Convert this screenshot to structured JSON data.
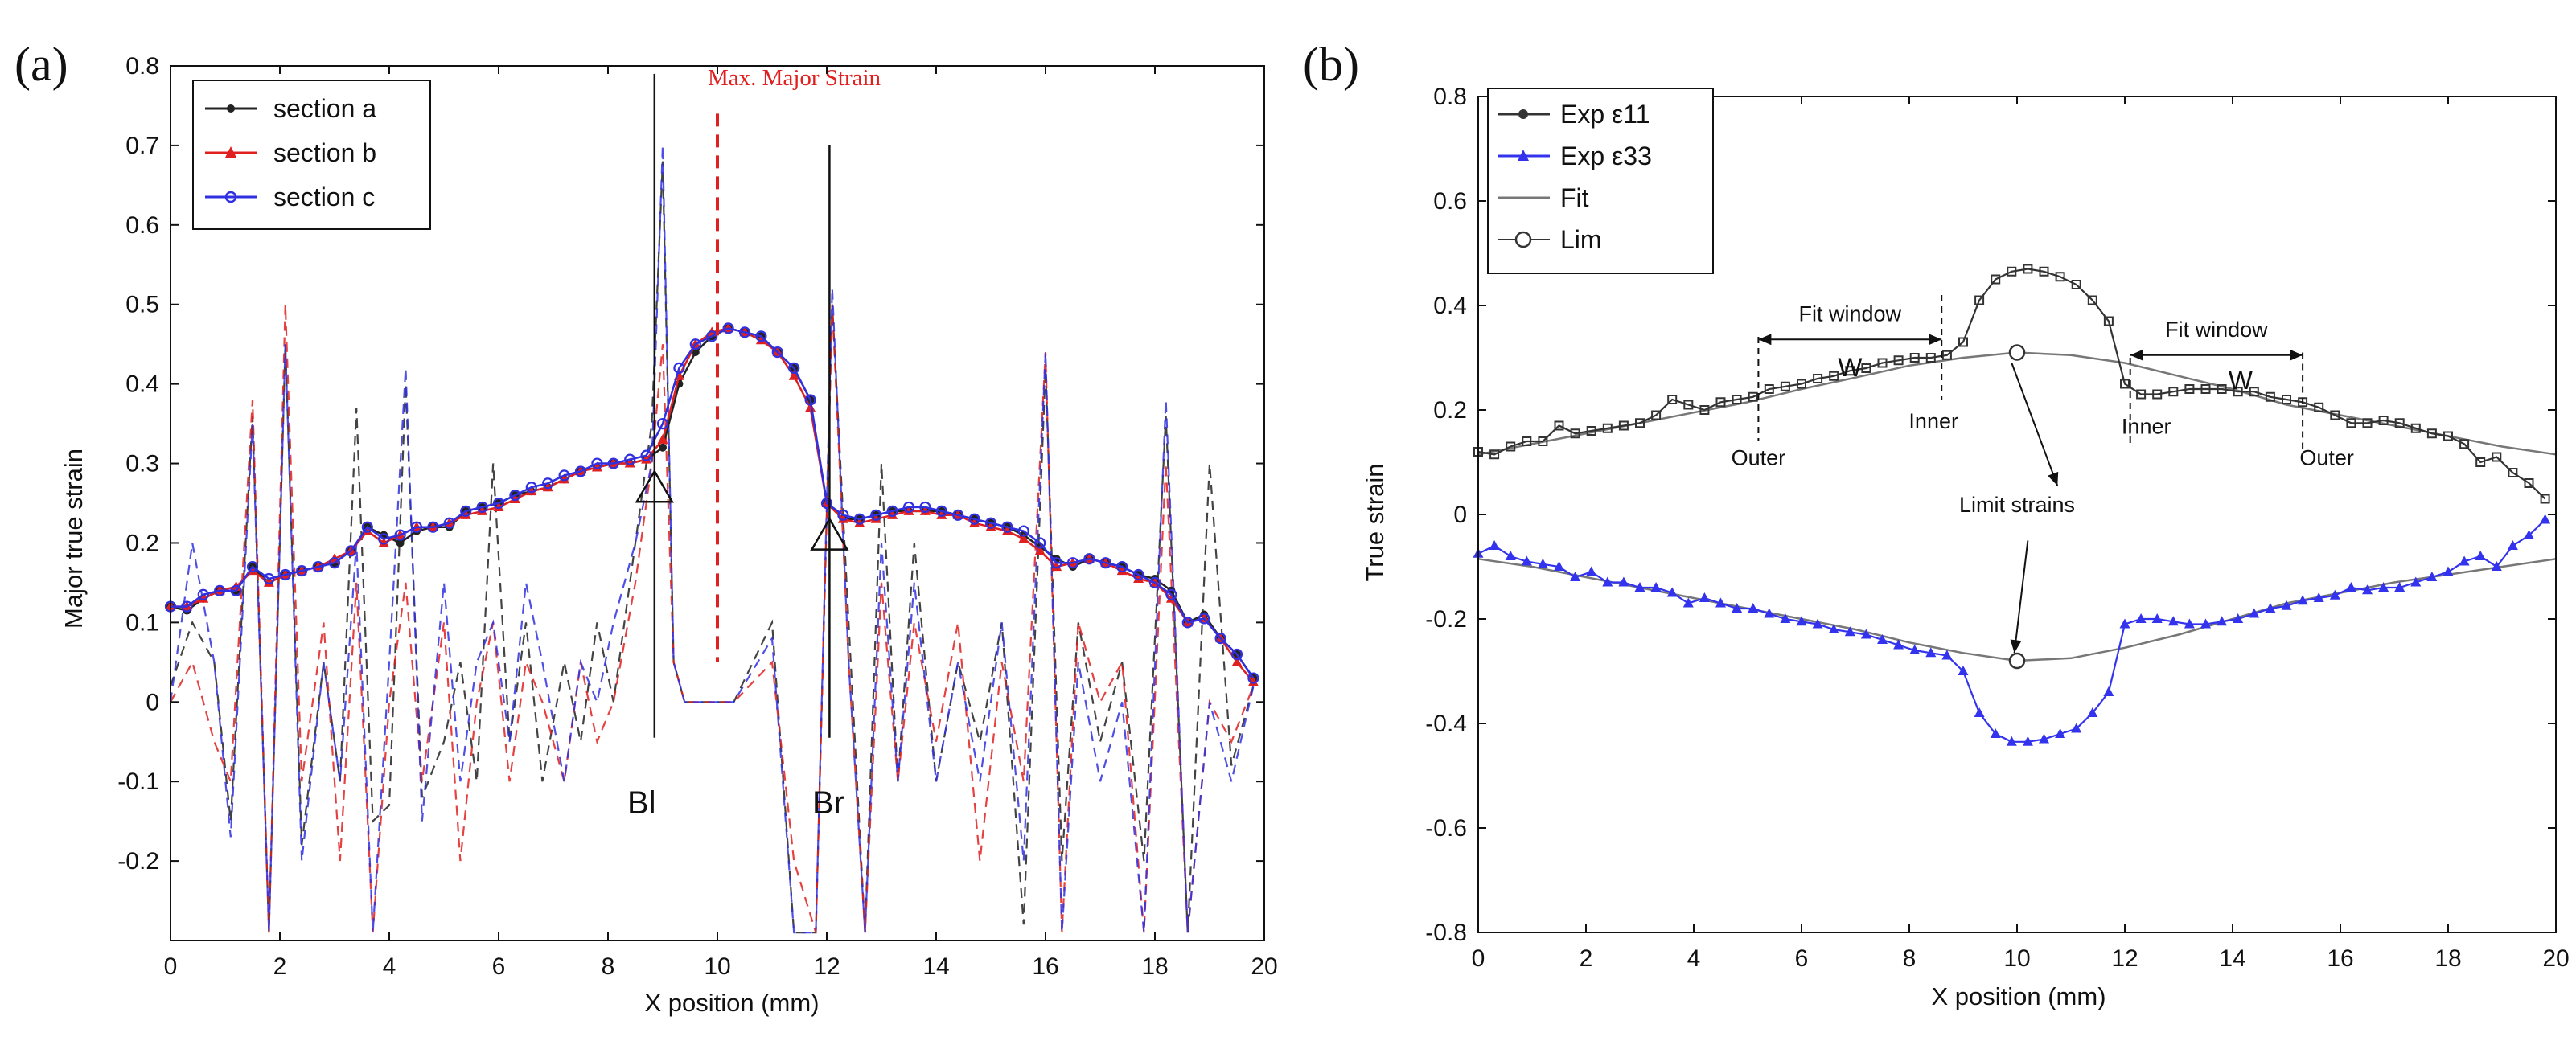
{
  "chart_data": [
    {
      "panel": "(a)",
      "type": "line",
      "xlabel": "X position (mm)",
      "ylabel": "Major true strain",
      "xlim": [
        0,
        20
      ],
      "ylim": [
        -0.3,
        0.8
      ],
      "xticks": [
        "0",
        "2",
        "4",
        "6",
        "8",
        "10",
        "12",
        "14",
        "16",
        "18",
        "20"
      ],
      "yticks": [
        "-0.2",
        "-0.1",
        "0",
        "0.1",
        "0.2",
        "0.3",
        "0.4",
        "0.5",
        "0.6",
        "0.7",
        "0.8"
      ],
      "legend": {
        "position": "top-left",
        "entries": [
          "section a",
          "section b",
          "section c"
        ]
      },
      "series_colors": [
        "#222222",
        "#e02020",
        "#3030e0"
      ],
      "annotations": {
        "max_label": "Max. Major Strain",
        "max_x": 10,
        "bl_label": "Bl",
        "bl_x": 8.85,
        "bl_y": 0.27,
        "br_label": "Br",
        "br_x": 12.05,
        "br_y": 0.21
      },
      "x": [
        0,
        0.3,
        0.6,
        0.9,
        1.2,
        1.5,
        1.8,
        2.1,
        2.4,
        2.7,
        3.0,
        3.3,
        3.6,
        3.9,
        4.2,
        4.5,
        4.8,
        5.1,
        5.4,
        5.7,
        6.0,
        6.3,
        6.6,
        6.9,
        7.2,
        7.5,
        7.8,
        8.1,
        8.4,
        8.7,
        9.0,
        9.3,
        9.6,
        9.9,
        10.2,
        10.5,
        10.8,
        11.1,
        11.4,
        11.7,
        12.0,
        12.3,
        12.6,
        12.9,
        13.2,
        13.5,
        13.8,
        14.1,
        14.4,
        14.7,
        15.0,
        15.3,
        15.6,
        15.9,
        16.2,
        16.5,
        16.8,
        17.1,
        17.4,
        17.7,
        18.0,
        18.3,
        18.6,
        18.9,
        19.2,
        19.5,
        19.8
      ],
      "series": [
        {
          "name": "section a",
          "values": [
            0.12,
            0.115,
            0.13,
            0.14,
            0.14,
            0.17,
            0.15,
            0.16,
            0.165,
            0.17,
            0.175,
            0.19,
            0.22,
            0.21,
            0.2,
            0.215,
            0.22,
            0.22,
            0.24,
            0.245,
            0.25,
            0.26,
            0.265,
            0.27,
            0.28,
            0.29,
            0.295,
            0.3,
            0.3,
            0.305,
            0.32,
            0.4,
            0.44,
            0.46,
            0.47,
            0.465,
            0.46,
            0.44,
            0.42,
            0.38,
            0.25,
            0.23,
            0.23,
            0.235,
            0.24,
            0.24,
            0.24,
            0.24,
            0.235,
            0.23,
            0.225,
            0.22,
            0.21,
            0.195,
            0.18,
            0.17,
            0.18,
            0.175,
            0.17,
            0.16,
            0.155,
            0.14,
            0.1,
            0.11,
            0.08,
            0.06,
            0.03
          ]
        },
        {
          "name": "section b",
          "values": [
            0.12,
            0.12,
            0.13,
            0.14,
            0.145,
            0.165,
            0.15,
            0.16,
            0.165,
            0.17,
            0.18,
            0.19,
            0.215,
            0.2,
            0.21,
            0.22,
            0.22,
            0.225,
            0.235,
            0.24,
            0.245,
            0.255,
            0.265,
            0.27,
            0.28,
            0.29,
            0.295,
            0.3,
            0.3,
            0.305,
            0.33,
            0.41,
            0.45,
            0.465,
            0.47,
            0.465,
            0.455,
            0.44,
            0.41,
            0.37,
            0.25,
            0.23,
            0.225,
            0.23,
            0.235,
            0.24,
            0.24,
            0.235,
            0.235,
            0.225,
            0.22,
            0.215,
            0.205,
            0.19,
            0.17,
            0.175,
            0.18,
            0.175,
            0.165,
            0.155,
            0.15,
            0.13,
            0.1,
            0.105,
            0.08,
            0.05,
            0.025
          ]
        },
        {
          "name": "section c",
          "values": [
            0.12,
            0.12,
            0.135,
            0.14,
            0.14,
            0.17,
            0.155,
            0.16,
            0.165,
            0.17,
            0.175,
            0.19,
            0.22,
            0.205,
            0.21,
            0.22,
            0.22,
            0.225,
            0.24,
            0.245,
            0.25,
            0.26,
            0.27,
            0.275,
            0.285,
            0.29,
            0.3,
            0.3,
            0.305,
            0.31,
            0.35,
            0.42,
            0.45,
            0.46,
            0.47,
            0.465,
            0.46,
            0.44,
            0.42,
            0.38,
            0.25,
            0.235,
            0.23,
            0.235,
            0.24,
            0.245,
            0.245,
            0.24,
            0.235,
            0.23,
            0.225,
            0.22,
            0.215,
            0.2,
            0.175,
            0.175,
            0.18,
            0.175,
            0.17,
            0.16,
            0.15,
            0.135,
            0.1,
            0.105,
            0.08,
            0.06,
            0.03
          ]
        }
      ],
      "dashed_series": [
        {
          "name": "section a (dashed)",
          "x": [
            0,
            0.4,
            0.8,
            1.1,
            1.5,
            1.8,
            2.1,
            2.4,
            2.8,
            3.1,
            3.4,
            3.7,
            4.0,
            4.3,
            4.6,
            5.0,
            5.3,
            5.6,
            5.9,
            6.2,
            6.5,
            6.8,
            7.2,
            7.5,
            7.8,
            8.1,
            8.5,
            8.8,
            9.0,
            9.2,
            9.4,
            9.7,
            10.0,
            10.3,
            11.0,
            11.4,
            11.8,
            12.1,
            12.4,
            12.7,
            13.0,
            13.3,
            13.6,
            14.0,
            14.4,
            14.8,
            15.2,
            15.6,
            16.0,
            16.3,
            16.6,
            17.0,
            17.4,
            17.8,
            18.2,
            18.6,
            19.0,
            19.4,
            19.8
          ],
          "values": [
            0.02,
            0.1,
            0.05,
            -0.15,
            0.36,
            -0.29,
            0.45,
            -0.18,
            0.05,
            -0.1,
            0.37,
            -0.15,
            -0.13,
            0.4,
            -0.12,
            -0.05,
            0.05,
            -0.1,
            0.3,
            -0.05,
            0.1,
            -0.1,
            0.05,
            -0.05,
            0.1,
            0.0,
            0.2,
            0.35,
            0.68,
            0.05,
            0.0,
            0.0,
            0.0,
            0.0,
            0.1,
            -0.29,
            -0.29,
            0.5,
            0.1,
            -0.29,
            0.3,
            -0.1,
            0.2,
            -0.1,
            0.05,
            -0.05,
            0.1,
            -0.28,
            0.42,
            -0.2,
            0.1,
            -0.05,
            0.05,
            -0.2,
            0.36,
            -0.29,
            0.3,
            -0.08,
            0.02
          ]
        },
        {
          "name": "section b (dashed)",
          "x": [
            0,
            0.4,
            0.8,
            1.1,
            1.5,
            1.8,
            2.1,
            2.4,
            2.8,
            3.1,
            3.4,
            3.7,
            4.0,
            4.3,
            4.6,
            5.0,
            5.3,
            5.6,
            5.9,
            6.2,
            6.5,
            6.8,
            7.2,
            7.5,
            7.8,
            8.1,
            8.5,
            8.8,
            9.0,
            9.2,
            9.4,
            9.7,
            10.0,
            10.3,
            11.0,
            11.4,
            11.8,
            12.1,
            12.4,
            12.7,
            13.0,
            13.3,
            13.6,
            14.0,
            14.4,
            14.8,
            15.2,
            15.6,
            16.0,
            16.3,
            16.6,
            17.0,
            17.4,
            17.8,
            18.2,
            18.6,
            19.0,
            19.4,
            19.8
          ],
          "values": [
            0.0,
            0.05,
            -0.05,
            -0.1,
            0.38,
            -0.29,
            0.5,
            -0.1,
            0.1,
            -0.2,
            0.15,
            -0.29,
            0.0,
            0.15,
            -0.1,
            0.1,
            -0.2,
            0.0,
            0.1,
            -0.1,
            0.05,
            0.0,
            -0.1,
            0.05,
            -0.05,
            0.0,
            0.15,
            0.3,
            0.45,
            0.05,
            0.0,
            0.0,
            0.0,
            0.0,
            0.05,
            -0.2,
            -0.29,
            0.5,
            0.05,
            -0.29,
            0.15,
            -0.1,
            0.1,
            -0.05,
            0.1,
            -0.2,
            0.05,
            -0.1,
            0.44,
            -0.29,
            0.1,
            0.0,
            0.05,
            -0.29,
            0.3,
            -0.29,
            0.0,
            -0.05,
            0.02
          ]
        },
        {
          "name": "section c (dashed)",
          "x": [
            0,
            0.4,
            0.8,
            1.1,
            1.5,
            1.8,
            2.1,
            2.4,
            2.8,
            3.1,
            3.4,
            3.7,
            4.0,
            4.3,
            4.6,
            5.0,
            5.3,
            5.6,
            5.9,
            6.2,
            6.5,
            6.8,
            7.2,
            7.5,
            7.8,
            8.1,
            8.5,
            8.8,
            9.0,
            9.2,
            9.4,
            9.7,
            10.0,
            10.3,
            11.0,
            11.4,
            11.8,
            12.1,
            12.4,
            12.7,
            13.0,
            13.3,
            13.6,
            14.0,
            14.4,
            14.8,
            15.2,
            15.6,
            16.0,
            16.3,
            16.6,
            17.0,
            17.4,
            17.8,
            18.2,
            18.6,
            19.0,
            19.4,
            19.8
          ],
          "values": [
            0.0,
            0.2,
            0.05,
            -0.17,
            0.35,
            -0.29,
            0.45,
            -0.2,
            0.05,
            -0.1,
            0.2,
            -0.29,
            0.05,
            0.42,
            -0.15,
            0.15,
            -0.1,
            0.05,
            0.1,
            -0.05,
            0.15,
            0.05,
            -0.1,
            0.05,
            0.0,
            0.1,
            0.2,
            0.3,
            0.7,
            0.05,
            0.0,
            0.0,
            0.0,
            0.0,
            0.08,
            -0.29,
            -0.29,
            0.52,
            0.05,
            -0.29,
            0.2,
            -0.1,
            0.15,
            -0.1,
            0.05,
            -0.1,
            0.1,
            -0.2,
            0.44,
            -0.29,
            0.05,
            -0.1,
            0.0,
            -0.29,
            0.38,
            -0.29,
            0.0,
            -0.1,
            0.02
          ]
        }
      ]
    },
    {
      "panel": "(b)",
      "type": "line",
      "xlabel": "X position (mm)",
      "ylabel": "True strain",
      "xlim": [
        0,
        20
      ],
      "ylim": [
        -0.8,
        0.8
      ],
      "xticks": [
        "0",
        "2",
        "4",
        "6",
        "8",
        "10",
        "12",
        "14",
        "16",
        "18",
        "20"
      ],
      "yticks": [
        "-0.8",
        "-0.6",
        "-0.4",
        "-0.2",
        "0",
        "0.2",
        "0.4",
        "0.6",
        "0.8"
      ],
      "legend": {
        "position": "top-left",
        "entries": [
          "Exp ε11",
          "Exp ε33",
          "Fit",
          "Lim"
        ]
      },
      "series_colors": [
        "#333333",
        "#3333ee",
        "#777777",
        "#333333"
      ],
      "annotations": {
        "fit_window_label": "Fit window",
        "w_label": "W",
        "outer_label": "Outer",
        "inner_label": "Inner",
        "limit_label": "Limit strains",
        "left_outer_x": 5.2,
        "left_inner_x": 8.6,
        "right_inner_x": 12.1,
        "right_outer_x": 15.3,
        "lim_points": [
          [
            10,
            0.31
          ],
          [
            10,
            -0.28
          ]
        ]
      },
      "x": [
        0,
        0.3,
        0.6,
        0.9,
        1.2,
        1.5,
        1.8,
        2.1,
        2.4,
        2.7,
        3.0,
        3.3,
        3.6,
        3.9,
        4.2,
        4.5,
        4.8,
        5.1,
        5.4,
        5.7,
        6.0,
        6.3,
        6.6,
        6.9,
        7.2,
        7.5,
        7.8,
        8.1,
        8.4,
        8.7,
        9.0,
        9.3,
        9.6,
        9.9,
        10.2,
        10.5,
        10.8,
        11.1,
        11.4,
        11.7,
        12.0,
        12.3,
        12.6,
        12.9,
        13.2,
        13.5,
        13.8,
        14.1,
        14.4,
        14.7,
        15.0,
        15.3,
        15.6,
        15.9,
        16.2,
        16.5,
        16.8,
        17.1,
        17.4,
        17.7,
        18.0,
        18.3,
        18.6,
        18.9,
        19.2,
        19.5,
        19.8
      ],
      "series": [
        {
          "name": "Exp ε11",
          "values": [
            0.12,
            0.115,
            0.13,
            0.14,
            0.14,
            0.17,
            0.155,
            0.16,
            0.165,
            0.17,
            0.175,
            0.19,
            0.22,
            0.21,
            0.2,
            0.215,
            0.22,
            0.225,
            0.24,
            0.245,
            0.25,
            0.26,
            0.265,
            0.275,
            0.28,
            0.29,
            0.295,
            0.3,
            0.3,
            0.305,
            0.33,
            0.41,
            0.45,
            0.465,
            0.47,
            0.465,
            0.455,
            0.44,
            0.41,
            0.37,
            0.25,
            0.23,
            0.23,
            0.235,
            0.24,
            0.24,
            0.24,
            0.235,
            0.235,
            0.225,
            0.22,
            0.215,
            0.205,
            0.19,
            0.175,
            0.175,
            0.18,
            0.175,
            0.165,
            0.155,
            0.15,
            0.135,
            0.1,
            0.11,
            0.08,
            0.06,
            0.03
          ]
        },
        {
          "name": "Exp ε33",
          "values": [
            -0.075,
            -0.06,
            -0.08,
            -0.09,
            -0.095,
            -0.1,
            -0.12,
            -0.11,
            -0.13,
            -0.13,
            -0.14,
            -0.14,
            -0.15,
            -0.17,
            -0.16,
            -0.17,
            -0.18,
            -0.18,
            -0.19,
            -0.2,
            -0.205,
            -0.21,
            -0.22,
            -0.225,
            -0.23,
            -0.24,
            -0.25,
            -0.26,
            -0.265,
            -0.27,
            -0.3,
            -0.38,
            -0.42,
            -0.435,
            -0.435,
            -0.43,
            -0.42,
            -0.41,
            -0.38,
            -0.34,
            -0.21,
            -0.2,
            -0.2,
            -0.205,
            -0.21,
            -0.21,
            -0.205,
            -0.2,
            -0.19,
            -0.18,
            -0.175,
            -0.165,
            -0.16,
            -0.155,
            -0.14,
            -0.145,
            -0.14,
            -0.14,
            -0.13,
            -0.12,
            -0.11,
            -0.09,
            -0.08,
            -0.1,
            -0.06,
            -0.04,
            -0.01
          ]
        }
      ],
      "fit": {
        "x": [
          0,
          1,
          2,
          3,
          4,
          5,
          6,
          7,
          8,
          9,
          10,
          11,
          12,
          13,
          14,
          15,
          16,
          17,
          18,
          19,
          20
        ],
        "upper": [
          0.115,
          0.135,
          0.155,
          0.175,
          0.195,
          0.215,
          0.24,
          0.262,
          0.285,
          0.3,
          0.31,
          0.305,
          0.29,
          0.265,
          0.24,
          0.21,
          0.19,
          0.17,
          0.15,
          0.13,
          0.115
        ],
        "lower": [
          -0.085,
          -0.1,
          -0.12,
          -0.14,
          -0.16,
          -0.18,
          -0.2,
          -0.22,
          -0.245,
          -0.265,
          -0.28,
          -0.275,
          -0.255,
          -0.23,
          -0.2,
          -0.17,
          -0.15,
          -0.13,
          -0.115,
          -0.1,
          -0.085
        ]
      }
    }
  ]
}
